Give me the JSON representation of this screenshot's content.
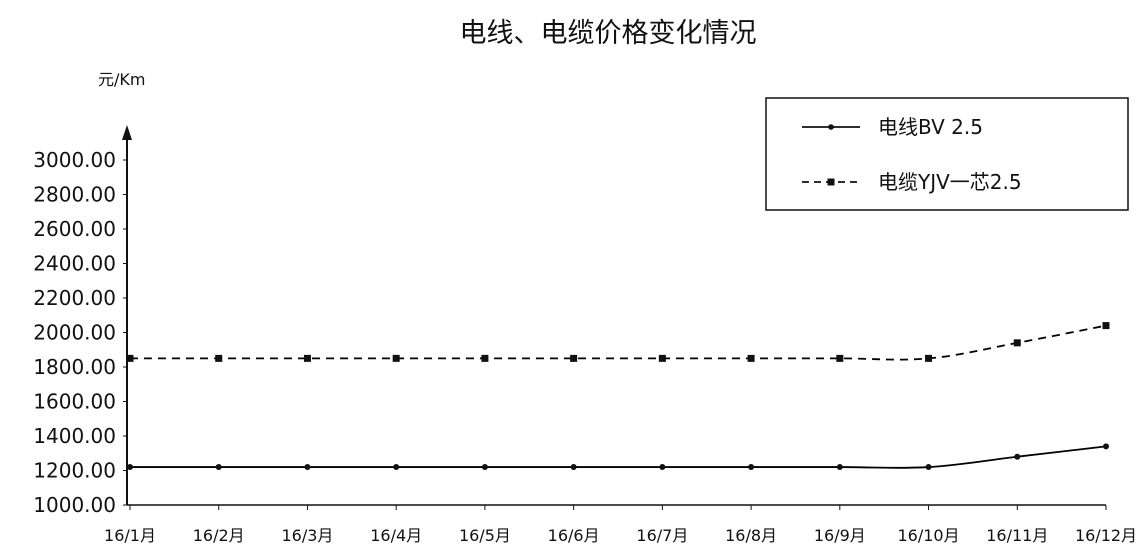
{
  "chart_data": {
    "type": "line",
    "title": "电线、电缆价格变化情况",
    "ylabel": "元/Km",
    "xlabel": "",
    "categories": [
      "16/1月",
      "16/2月",
      "16/3月",
      "16/4月",
      "16/5月",
      "16/6月",
      "16/7月",
      "16/8月",
      "16/9月",
      "16/10月",
      "16/11月",
      "16/12月"
    ],
    "ylim": [
      1000,
      3000
    ],
    "yticks": [
      "1000.00",
      "1200.00",
      "1400.00",
      "1600.00",
      "1800.00",
      "2000.00",
      "2200.00",
      "2400.00",
      "2600.00",
      "2800.00",
      "3000.00"
    ],
    "grid": false,
    "legend_position": "top-right",
    "series": [
      {
        "name": "电线BV 2.5",
        "line_style": "solid",
        "marker": "dot",
        "color": "#000000",
        "values": [
          1220,
          1220,
          1220,
          1220,
          1220,
          1220,
          1220,
          1220,
          1220,
          1220,
          1280,
          1340
        ]
      },
      {
        "name": "电缆YJV一芯2.5",
        "line_style": "dashed",
        "marker": "square",
        "color": "#000000",
        "values": [
          1850,
          1850,
          1850,
          1850,
          1850,
          1850,
          1850,
          1850,
          1850,
          1850,
          1940,
          2040
        ]
      }
    ]
  }
}
